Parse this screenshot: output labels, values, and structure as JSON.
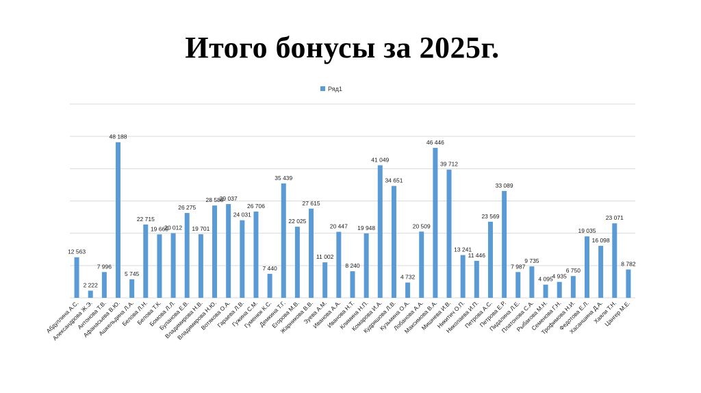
{
  "slide": {
    "title": "Итого бонусы за 2025г."
  },
  "chart_data": {
    "type": "bar",
    "title": "",
    "xlabel": "",
    "ylabel": "",
    "ylim": [
      0,
      60000
    ],
    "grid": true,
    "legend_position": "top",
    "bar_color": "#5B9BD5",
    "grid_color": "#D9D9D9",
    "categories": [
      "Абдуллина А.С.",
      "Александрова Ж.Э.",
      "Антонова Т.В.",
      "Афанасьева В.Ю.",
      "Ашкельдина Л.А.",
      "Белова Л.Н.",
      "Белова Т.К.",
      "Бомова Л.Л.",
      "Буланова Е.В.",
      "Владимирова Н.В.",
      "Владимирова Н.Ю.",
      "Вотякова О.А.",
      "Гараева Л.В.",
      "Гужина С.М.",
      "Гуменюк К.С.",
      "Демкина Т.Г.",
      "Егорова М.В.",
      "Жарникова В.В.",
      "Зуева А.М.",
      "Иванова А.А.",
      "Иванова Н.Т.",
      "Климина Н.П.",
      "Комарова И.А.",
      "Кудряшова Л.В.",
      "Кузьмина О.А.",
      "Лобанова А.А.",
      "Максимова В.А.",
      "Мишнева И.В.",
      "Никитич О.П.",
      "Николаева И.П.",
      "Петрова А.С.",
      "Петрова Е.Р.",
      "Пидалина Л.Е.",
      "Платонова С.А.",
      "Рыбакова М.Н.",
      "Семенова Г.Н.",
      "Трофимова Н.И.",
      "Федотова Е.Л.",
      "Хасаншина Д.А.",
      "Хаяли Т.Н.",
      "Цангер М.Е."
    ],
    "series": [
      {
        "name": "Ряд1",
        "values": [
          12563,
          2222,
          7996,
          48188,
          5745,
          22715,
          19665,
          20012,
          26275,
          19701,
          28588,
          29037,
          24031,
          26706,
          7440,
          35439,
          22025,
          27615,
          11002,
          20447,
          8240,
          19948,
          41049,
          34651,
          4732,
          20509,
          46446,
          39712,
          13241,
          11446,
          23569,
          33089,
          7987,
          9735,
          4095,
          4935,
          6750,
          19035,
          16098,
          23071,
          8782
        ],
        "labels": [
          "12 563",
          "2 222",
          "7 996",
          "48 188",
          "5 745",
          "22 715",
          "19 665",
          "20 012",
          "26 275",
          "19 701",
          "28 588",
          "29 037",
          "24 031",
          "26 706",
          "7 440",
          "35 439",
          "22 025",
          "27 615",
          "11 002",
          "20 447",
          "8 240",
          "19 948",
          "41 049",
          "34 651",
          "4 732",
          "20 509",
          "46 446",
          "39 712",
          "13 241",
          "11 446",
          "23 569",
          "33 089",
          "7 987",
          "9 735",
          "4 095",
          "4 935",
          "6 750",
          "19 035",
          "16 098",
          "23 071",
          "8 782"
        ]
      }
    ]
  }
}
